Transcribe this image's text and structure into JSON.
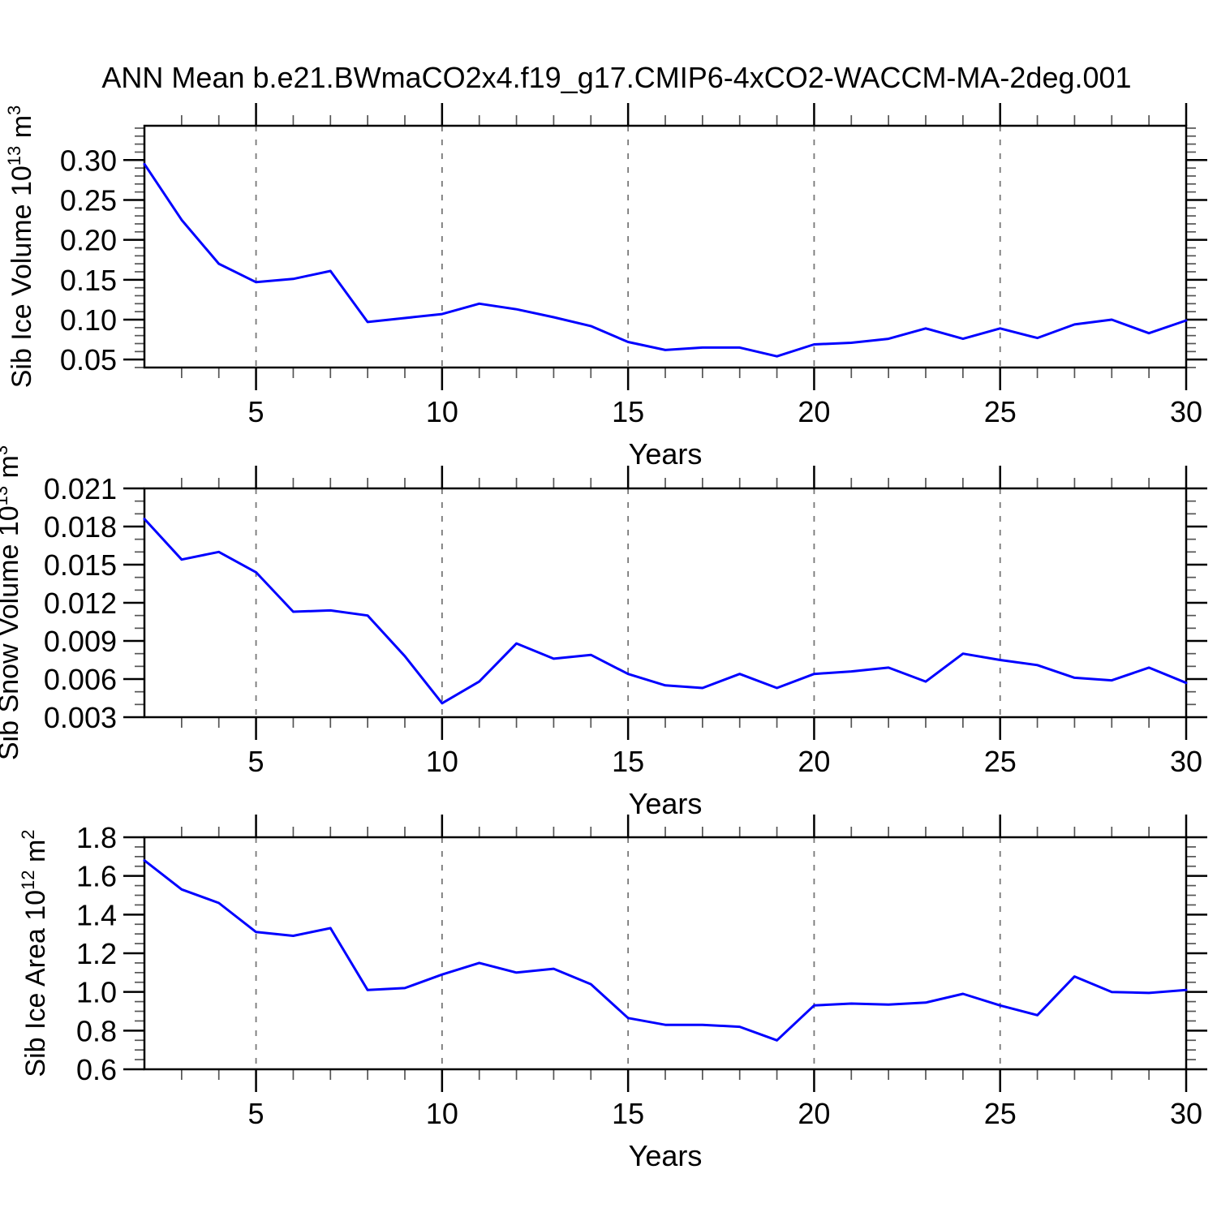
{
  "title": "ANN Mean b.e21.BWmaCO2x4.f19_g17.CMIP6-4xCO2-WACCM-MA-2deg.001",
  "background_color": "#ffffff",
  "line_color": "#0000ff",
  "frame_color": "#000000",
  "grid_color": "#787878",
  "chart_data": [
    {
      "type": "line",
      "name": "sib-ice-volume",
      "ylabel": {
        "text": "Sib Ice Volume 10¹³ m³",
        "pre": "Sib Ice Volume 10",
        "sup1": "13",
        "mid": " m",
        "sup2": "3"
      },
      "xlabel": "Years",
      "x": [
        2,
        3,
        4,
        5,
        6,
        7,
        8,
        9,
        10,
        11,
        12,
        13,
        14,
        15,
        16,
        17,
        18,
        19,
        20,
        21,
        22,
        23,
        24,
        25,
        26,
        27,
        28,
        29,
        30
      ],
      "values": [
        0.295,
        0.225,
        0.17,
        0.147,
        0.151,
        0.161,
        0.097,
        0.102,
        0.107,
        0.12,
        0.113,
        0.103,
        0.092,
        0.072,
        0.062,
        0.065,
        0.065,
        0.054,
        0.069,
        0.071,
        0.076,
        0.089,
        0.076,
        0.089,
        0.077,
        0.094,
        0.1,
        0.083,
        0.099
      ],
      "xlim": [
        2,
        30
      ],
      "ylim": [
        0.04,
        0.343
      ],
      "x_major_ticks": [
        5,
        10,
        15,
        20,
        25,
        30
      ],
      "x_tick_labels": [
        "5",
        "10",
        "15",
        "20",
        "25",
        "30"
      ],
      "x_minor_step": 1,
      "grid_x": [
        5,
        10,
        15,
        20,
        25
      ],
      "y_tick_values": [
        0.05,
        0.1,
        0.15,
        0.2,
        0.25,
        0.3
      ],
      "y_tick_labels": [
        "0.05",
        "0.10",
        "0.15",
        "0.20",
        "0.25",
        "0.30"
      ],
      "y_minor_step": 0.01,
      "grid": "vertical-dashed",
      "legend": "none"
    },
    {
      "type": "line",
      "name": "sib-snow-volume",
      "ylabel": {
        "text": "Sib Snow Volume 10¹³ m³",
        "pre": "Sib Snow Volume 10",
        "sup1": "13",
        "mid": " m",
        "sup2": "3"
      },
      "xlabel": "Years",
      "x": [
        2,
        3,
        4,
        5,
        6,
        7,
        8,
        9,
        10,
        11,
        12,
        13,
        14,
        15,
        16,
        17,
        18,
        19,
        20,
        21,
        22,
        23,
        24,
        25,
        26,
        27,
        28,
        29,
        30
      ],
      "values": [
        0.0186,
        0.0154,
        0.016,
        0.0144,
        0.0113,
        0.0114,
        0.011,
        0.0078,
        0.0041,
        0.0058,
        0.0088,
        0.0076,
        0.0079,
        0.0064,
        0.0055,
        0.0053,
        0.0064,
        0.0053,
        0.0064,
        0.0066,
        0.0069,
        0.0058,
        0.008,
        0.0075,
        0.0071,
        0.0061,
        0.0059,
        0.0069,
        0.0057
      ],
      "xlim": [
        2,
        30
      ],
      "ylim": [
        0.003,
        0.021
      ],
      "x_major_ticks": [
        5,
        10,
        15,
        20,
        25,
        30
      ],
      "x_tick_labels": [
        "5",
        "10",
        "15",
        "20",
        "25",
        "30"
      ],
      "x_minor_step": 1,
      "grid_x": [
        5,
        10,
        15,
        20,
        25
      ],
      "y_tick_values": [
        0.003,
        0.006,
        0.009,
        0.012,
        0.015,
        0.018,
        0.021
      ],
      "y_tick_labels": [
        "0.003",
        "0.006",
        "0.009",
        "0.012",
        "0.015",
        "0.018",
        "0.021"
      ],
      "y_minor_step": 0.001,
      "grid": "vertical-dashed",
      "legend": "none"
    },
    {
      "type": "line",
      "name": "sib-ice-area",
      "ylabel": {
        "text": "Sib Ice Area 10¹² m²",
        "pre": "Sib Ice Area 10",
        "sup1": "12",
        "mid": " m",
        "sup2": "2"
      },
      "xlabel": "Years",
      "x": [
        2,
        3,
        4,
        5,
        6,
        7,
        8,
        9,
        10,
        11,
        12,
        13,
        14,
        15,
        16,
        17,
        18,
        19,
        20,
        21,
        22,
        23,
        24,
        25,
        26,
        27,
        28,
        29,
        30
      ],
      "values": [
        1.68,
        1.53,
        1.46,
        1.31,
        1.29,
        1.33,
        1.01,
        1.02,
        1.09,
        1.15,
        1.1,
        1.12,
        1.04,
        0.865,
        0.83,
        0.83,
        0.82,
        0.75,
        0.93,
        0.94,
        0.935,
        0.945,
        0.99,
        0.93,
        0.88,
        1.08,
        1.0,
        0.995,
        1.01
      ],
      "xlim": [
        2,
        30
      ],
      "ylim": [
        0.6,
        1.8
      ],
      "x_major_ticks": [
        5,
        10,
        15,
        20,
        25,
        30
      ],
      "x_tick_labels": [
        "5",
        "10",
        "15",
        "20",
        "25",
        "30"
      ],
      "x_minor_step": 1,
      "grid_x": [
        5,
        10,
        15,
        20,
        25
      ],
      "y_tick_values": [
        0.6,
        0.8,
        1.0,
        1.2,
        1.4,
        1.6,
        1.8
      ],
      "y_tick_labels": [
        "0.6",
        "0.8",
        "1.0",
        "1.2",
        "1.4",
        "1.6",
        "1.8"
      ],
      "y_minor_step": 0.05,
      "grid": "vertical-dashed",
      "legend": "none"
    }
  ]
}
